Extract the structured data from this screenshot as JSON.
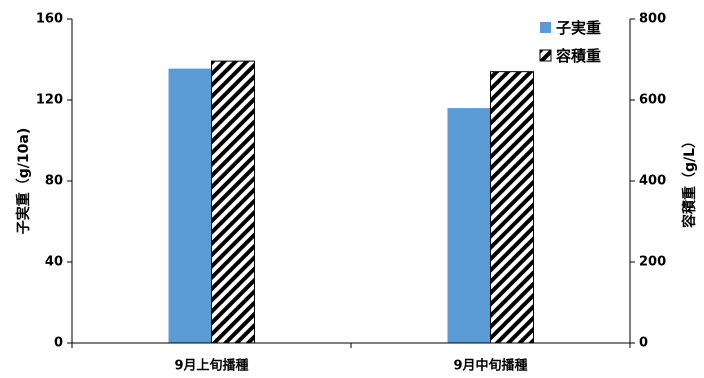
{
  "chart_data": {
    "type": "bar",
    "categories": [
      "9月上旬播種",
      "9月中旬播種"
    ],
    "series": [
      {
        "name": "子実重",
        "axis": "left",
        "values": [
          135.5,
          116
        ],
        "color": "#5B9BD5",
        "pattern": "solid"
      },
      {
        "name": "容積重",
        "axis": "right",
        "values": [
          696,
          670
        ],
        "color": "#000000",
        "pattern": "diagonal-hatch"
      }
    ],
    "ylabel_left": "子実重（g/10a)",
    "ylabel_right": "容積重（g/L）",
    "ylim_left": [
      0,
      160
    ],
    "yticks_left": [
      "0",
      "40",
      "80",
      "120",
      "160"
    ],
    "ylim_right": [
      0,
      800
    ],
    "yticks_right": [
      "0",
      "200",
      "400",
      "600",
      "800"
    ],
    "legend": "top-right",
    "grid": false
  }
}
